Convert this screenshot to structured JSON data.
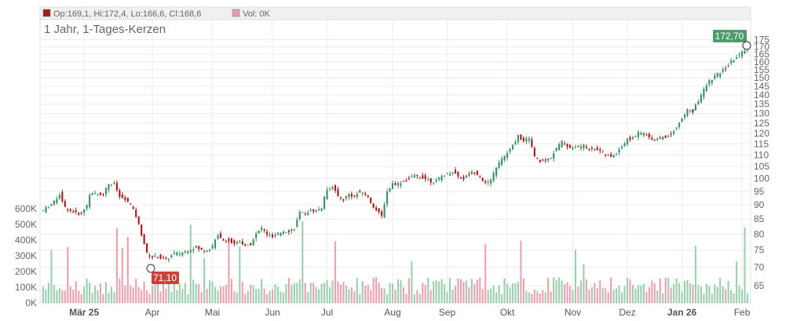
{
  "legend": {
    "ohlc": "Op:169,1, Hi:172,4, Lo:166,6, Cl:168,6",
    "volume": "Vol: 0K",
    "ohlc_swatch_color": "#a31c1c",
    "volume_swatch_color": "#e89aa6"
  },
  "chart_title": "1 Jahr, 1-Tages-Kerzen",
  "last_price_badge": {
    "text": "172,70",
    "color": "#4c9c6a"
  },
  "low_price_badge": {
    "text": "71,10",
    "color": "#c8443a"
  },
  "chart_data": {
    "type": "candlestick",
    "title": "1 Jahr, 1-Tages-Kerzen",
    "price_axis": {
      "side": "right",
      "scale": "log",
      "ticks": [
        65,
        70,
        75,
        80,
        85,
        90,
        95,
        100,
        105,
        110,
        115,
        120,
        125,
        130,
        135,
        140,
        145,
        150,
        155,
        160,
        165,
        170,
        175
      ],
      "tick_labels": [
        "65",
        "70",
        "75",
        "80",
        "85",
        "90",
        "95",
        "100",
        "105",
        "110",
        "115",
        "120",
        "125",
        "130",
        "135",
        "140",
        "145",
        "150",
        "155",
        "160",
        "165",
        "170",
        "175"
      ]
    },
    "volume_axis": {
      "side": "left",
      "ticks": [
        0,
        100,
        200,
        300,
        400,
        500,
        600
      ],
      "tick_labels": [
        "0K",
        "100K",
        "200K",
        "300K",
        "400K",
        "500K",
        "600K"
      ]
    },
    "x_labels": [
      "Mär 25",
      "Apr",
      "Mai",
      "Jun",
      "Jul",
      "Aug",
      "Sep",
      "Okt",
      "Nov",
      "Dez",
      "Jan 26",
      "Feb"
    ],
    "bold_x_labels": [
      "Mär 25",
      "Jan 26"
    ],
    "x_label_days": [
      15,
      40,
      62,
      84,
      104,
      128,
      148,
      170,
      194,
      214,
      234,
      256
    ],
    "total_days": 259,
    "close_anchors": [
      [
        0,
        88
      ],
      [
        4,
        91
      ],
      [
        6,
        94
      ],
      [
        8,
        89
      ],
      [
        10,
        88
      ],
      [
        12,
        87
      ],
      [
        14,
        87
      ],
      [
        16,
        90
      ],
      [
        17,
        94
      ],
      [
        20,
        94
      ],
      [
        22,
        94
      ],
      [
        24,
        98
      ],
      [
        26,
        98
      ],
      [
        28,
        93
      ],
      [
        30,
        92
      ],
      [
        32,
        90
      ],
      [
        34,
        86
      ],
      [
        36,
        80
      ],
      [
        38,
        74
      ],
      [
        40,
        73
      ],
      [
        42,
        73
      ],
      [
        45,
        72
      ],
      [
        48,
        74
      ],
      [
        50,
        74
      ],
      [
        53,
        75
      ],
      [
        56,
        76
      ],
      [
        58,
        75
      ],
      [
        60,
        75
      ],
      [
        62,
        76
      ],
      [
        64,
        80
      ],
      [
        66,
        78
      ],
      [
        68,
        78
      ],
      [
        70,
        77
      ],
      [
        72,
        78
      ],
      [
        74,
        76
      ],
      [
        76,
        77
      ],
      [
        78,
        80
      ],
      [
        80,
        82
      ],
      [
        82,
        80
      ],
      [
        84,
        79
      ],
      [
        86,
        80
      ],
      [
        88,
        81
      ],
      [
        90,
        81
      ],
      [
        92,
        82
      ],
      [
        94,
        87
      ],
      [
        96,
        87
      ],
      [
        98,
        88
      ],
      [
        100,
        88
      ],
      [
        102,
        89
      ],
      [
        104,
        96
      ],
      [
        106,
        97
      ],
      [
        108,
        93
      ],
      [
        110,
        92
      ],
      [
        112,
        94
      ],
      [
        114,
        93
      ],
      [
        116,
        95
      ],
      [
        118,
        94
      ],
      [
        120,
        91
      ],
      [
        122,
        88
      ],
      [
        124,
        86
      ],
      [
        126,
        95
      ],
      [
        128,
        98
      ],
      [
        130,
        98
      ],
      [
        132,
        99
      ],
      [
        134,
        100
      ],
      [
        136,
        101
      ],
      [
        138,
        101
      ],
      [
        140,
        100
      ],
      [
        142,
        99
      ],
      [
        144,
        99
      ],
      [
        146,
        101
      ],
      [
        148,
        102
      ],
      [
        150,
        103
      ],
      [
        152,
        101
      ],
      [
        154,
        100
      ],
      [
        156,
        102
      ],
      [
        158,
        103
      ],
      [
        160,
        101
      ],
      [
        162,
        98
      ],
      [
        164,
        99
      ],
      [
        166,
        105
      ],
      [
        168,
        108
      ],
      [
        170,
        111
      ],
      [
        172,
        114
      ],
      [
        174,
        119
      ],
      [
        176,
        116
      ],
      [
        178,
        118
      ],
      [
        180,
        109
      ],
      [
        182,
        107
      ],
      [
        184,
        108
      ],
      [
        186,
        109
      ],
      [
        188,
        113
      ],
      [
        190,
        116
      ],
      [
        192,
        114
      ],
      [
        194,
        113
      ],
      [
        196,
        114
      ],
      [
        198,
        114
      ],
      [
        200,
        113
      ],
      [
        202,
        113
      ],
      [
        204,
        112
      ],
      [
        206,
        110
      ],
      [
        208,
        109
      ],
      [
        210,
        111
      ],
      [
        212,
        114
      ],
      [
        214,
        117
      ],
      [
        216,
        118
      ],
      [
        218,
        120
      ],
      [
        220,
        120
      ],
      [
        222,
        118
      ],
      [
        224,
        117
      ],
      [
        226,
        118
      ],
      [
        228,
        118
      ],
      [
        230,
        120
      ],
      [
        232,
        123
      ],
      [
        234,
        127
      ],
      [
        236,
        132
      ],
      [
        238,
        131
      ],
      [
        240,
        137
      ],
      [
        242,
        143
      ],
      [
        244,
        148
      ],
      [
        246,
        151
      ],
      [
        248,
        153
      ],
      [
        250,
        156
      ],
      [
        252,
        160
      ],
      [
        254,
        163
      ],
      [
        256,
        166
      ],
      [
        258,
        170
      ]
    ],
    "price_range": [
      62,
      178
    ],
    "volume_range": [
      0,
      620
    ],
    "volume_color_up": "#9fcfb1",
    "volume_color_down": "#eaa4b1",
    "candle_up_color": "#3d9166",
    "candle_down_color": "#a81c1c"
  }
}
